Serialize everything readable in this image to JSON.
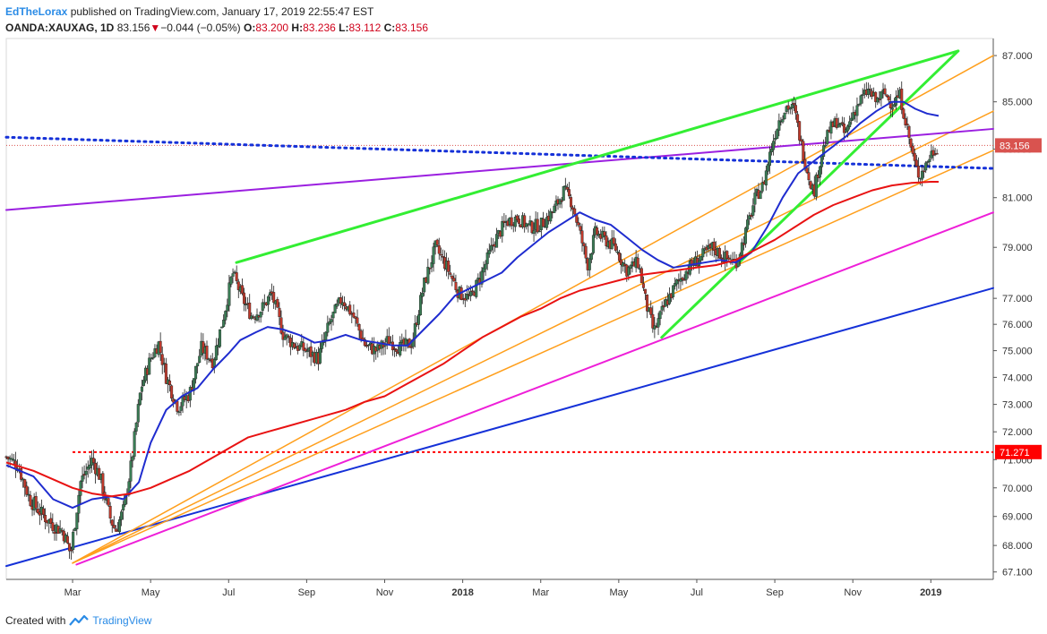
{
  "header": {
    "author": "EdTheLorax",
    "published": "published on TradingView.com, January 17, 2019 22:55:47 EST",
    "symbol": "OANDA:XAUXAG, 1D",
    "last": "83.156",
    "change_arrow": "▼",
    "change": "−0.044 (−0.05%)",
    "o_label": "O:",
    "o": "83.200",
    "h_label": "H:",
    "h": "83.236",
    "l_label": "L:",
    "l": "83.112",
    "c_label": "C:",
    "c": "83.156"
  },
  "footer": {
    "created_with": "Created with",
    "brand": "TradingView",
    "logo_icon": "tradingview-logo-icon"
  },
  "chart_data": {
    "type": "candlestick",
    "y_ticks": [
      "87.000",
      "85.000",
      "83.000",
      "81.000",
      "79.000",
      "77.000",
      "76.000",
      "75.000",
      "74.000",
      "73.000",
      "72.000",
      "71.000",
      "70.000",
      "69.000",
      "68.000",
      "67.100"
    ],
    "y_tick_values": [
      87,
      85,
      83,
      81,
      79,
      77,
      76,
      75,
      74,
      73,
      72,
      71,
      70,
      69,
      68,
      67.1
    ],
    "x_ticks": [
      {
        "label": "Mar",
        "t": 2.0
      },
      {
        "label": "May",
        "t": 4.0
      },
      {
        "label": "Jul",
        "t": 6.0
      },
      {
        "label": "Sep",
        "t": 8.0
      },
      {
        "label": "Nov",
        "t": 10.0
      },
      {
        "label": "2018",
        "t": 12.0,
        "bold": true
      },
      {
        "label": "Mar",
        "t": 14.0
      },
      {
        "label": "May",
        "t": 16.0
      },
      {
        "label": "Jul",
        "t": 18.0
      },
      {
        "label": "Sep",
        "t": 20.0
      },
      {
        "label": "Nov",
        "t": 22.0
      },
      {
        "label": "2019",
        "t": 24.0,
        "bold": true
      }
    ],
    "x_range": [
      0.3,
      25.6
    ],
    "current_price": {
      "value": 83.156,
      "label": "83.156",
      "color": "#d9534f"
    },
    "horizontal_level": {
      "value": 71.271,
      "label": "71.271",
      "color": "#ff0000"
    },
    "candle_colors": {
      "up": "#3a7d55",
      "down": "#c0392b"
    },
    "price_path": [
      [
        0.3,
        71.1
      ],
      [
        0.6,
        70.8
      ],
      [
        0.9,
        69.6
      ],
      [
        1.2,
        69.1
      ],
      [
        1.5,
        68.7
      ],
      [
        1.75,
        68.5
      ],
      [
        1.95,
        67.7
      ],
      [
        2.2,
        70.2
      ],
      [
        2.5,
        71.0
      ],
      [
        2.7,
        70.4
      ],
      [
        2.95,
        69.0
      ],
      [
        3.1,
        68.5
      ],
      [
        3.3,
        69.2
      ],
      [
        3.5,
        70.8
      ],
      [
        3.75,
        73.6
      ],
      [
        4.0,
        74.7
      ],
      [
        4.2,
        75.3
      ],
      [
        4.4,
        74.0
      ],
      [
        4.7,
        72.9
      ],
      [
        5.0,
        73.4
      ],
      [
        5.3,
        75.1
      ],
      [
        5.6,
        74.6
      ],
      [
        5.9,
        76.5
      ],
      [
        6.1,
        78.0
      ],
      [
        6.35,
        77.0
      ],
      [
        6.6,
        76.3
      ],
      [
        6.85,
        76.6
      ],
      [
        7.1,
        77.2
      ],
      [
        7.4,
        75.6
      ],
      [
        7.7,
        75.2
      ],
      [
        8.0,
        75.0
      ],
      [
        8.3,
        74.7
      ],
      [
        8.6,
        76.1
      ],
      [
        8.9,
        77.0
      ],
      [
        9.2,
        76.3
      ],
      [
        9.5,
        75.2
      ],
      [
        9.8,
        75.0
      ],
      [
        10.1,
        75.4
      ],
      [
        10.4,
        75.1
      ],
      [
        10.7,
        75.3
      ],
      [
        11.0,
        77.5
      ],
      [
        11.3,
        79.0
      ],
      [
        11.6,
        78.2
      ],
      [
        11.9,
        77.2
      ],
      [
        12.2,
        77.0
      ],
      [
        12.5,
        78.0
      ],
      [
        12.8,
        79.2
      ],
      [
        13.1,
        80.0
      ],
      [
        13.4,
        80.2
      ],
      [
        13.7,
        79.8
      ],
      [
        14.0,
        79.9
      ],
      [
        14.3,
        80.4
      ],
      [
        14.6,
        81.3
      ],
      [
        14.8,
        80.8
      ],
      [
        15.0,
        79.6
      ],
      [
        15.2,
        78.3
      ],
      [
        15.4,
        79.6
      ],
      [
        15.65,
        79.3
      ],
      [
        15.9,
        79.0
      ],
      [
        16.2,
        78.1
      ],
      [
        16.5,
        78.4
      ],
      [
        16.7,
        76.8
      ],
      [
        16.9,
        75.7
      ],
      [
        17.2,
        76.8
      ],
      [
        17.5,
        77.6
      ],
      [
        17.8,
        78.2
      ],
      [
        18.1,
        78.6
      ],
      [
        18.4,
        79.0
      ],
      [
        18.7,
        78.6
      ],
      [
        19.0,
        78.4
      ],
      [
        19.2,
        79.3
      ],
      [
        19.5,
        81.0
      ],
      [
        19.7,
        81.5
      ],
      [
        19.9,
        83.0
      ],
      [
        20.1,
        84.2
      ],
      [
        20.3,
        84.8
      ],
      [
        20.5,
        84.7
      ],
      [
        20.7,
        83.0
      ],
      [
        20.85,
        82.0
      ],
      [
        21.0,
        81.2
      ],
      [
        21.2,
        82.8
      ],
      [
        21.4,
        83.8
      ],
      [
        21.6,
        84.2
      ],
      [
        21.8,
        83.6
      ],
      [
        22.0,
        84.5
      ],
      [
        22.2,
        85.1
      ],
      [
        22.4,
        85.5
      ],
      [
        22.6,
        85.0
      ],
      [
        22.8,
        85.4
      ],
      [
        23.0,
        84.9
      ],
      [
        23.2,
        85.3
      ],
      [
        23.35,
        84.2
      ],
      [
        23.5,
        83.0
      ],
      [
        23.6,
        82.3
      ],
      [
        23.7,
        81.9
      ],
      [
        23.85,
        82.3
      ],
      [
        24.0,
        82.8
      ],
      [
        24.2,
        83.156
      ]
    ],
    "series": [
      {
        "name": "",
        "style": "ma",
        "color": "#1f2ccf",
        "points": [
          [
            0.3,
            70.8
          ],
          [
            1.0,
            70.4
          ],
          [
            1.5,
            69.6
          ],
          [
            2.0,
            69.3
          ],
          [
            2.5,
            69.6
          ],
          [
            3.0,
            69.7
          ],
          [
            3.3,
            69.6
          ],
          [
            3.7,
            70.2
          ],
          [
            4.0,
            71.6
          ],
          [
            4.4,
            72.8
          ],
          [
            4.8,
            73.3
          ],
          [
            5.2,
            73.6
          ],
          [
            5.6,
            74.3
          ],
          [
            6.0,
            74.9
          ],
          [
            6.3,
            75.4
          ],
          [
            6.7,
            75.7
          ],
          [
            7.0,
            75.9
          ],
          [
            7.4,
            75.8
          ],
          [
            7.8,
            75.6
          ],
          [
            8.2,
            75.3
          ],
          [
            8.6,
            75.4
          ],
          [
            9.0,
            75.6
          ],
          [
            9.4,
            75.4
          ],
          [
            9.8,
            75.3
          ],
          [
            10.2,
            75.2
          ],
          [
            10.6,
            75.2
          ],
          [
            11.0,
            75.8
          ],
          [
            11.4,
            76.4
          ],
          [
            11.8,
            77.1
          ],
          [
            12.2,
            77.4
          ],
          [
            12.6,
            77.7
          ],
          [
            13.0,
            78.0
          ],
          [
            13.4,
            78.6
          ],
          [
            13.8,
            79.1
          ],
          [
            14.2,
            79.6
          ],
          [
            14.6,
            80.0
          ],
          [
            15.0,
            80.4
          ],
          [
            15.4,
            80.1
          ],
          [
            15.8,
            79.9
          ],
          [
            16.2,
            79.4
          ],
          [
            16.6,
            78.9
          ],
          [
            17.0,
            78.5
          ],
          [
            17.4,
            78.2
          ],
          [
            17.8,
            78.3
          ],
          [
            18.2,
            78.4
          ],
          [
            18.6,
            78.5
          ],
          [
            19.0,
            78.4
          ],
          [
            19.4,
            78.8
          ],
          [
            19.8,
            79.8
          ],
          [
            20.2,
            81.0
          ],
          [
            20.6,
            82.0
          ],
          [
            21.0,
            82.5
          ],
          [
            21.4,
            83.0
          ],
          [
            21.8,
            83.5
          ],
          [
            22.2,
            84.1
          ],
          [
            22.6,
            84.6
          ],
          [
            23.0,
            85.0
          ],
          [
            23.3,
            85.0
          ],
          [
            23.6,
            84.7
          ],
          [
            23.9,
            84.5
          ],
          [
            24.2,
            84.4
          ]
        ]
      },
      {
        "name": "",
        "style": "ma",
        "color": "#e81212",
        "points": [
          [
            0.3,
            70.9
          ],
          [
            1.0,
            70.6
          ],
          [
            1.5,
            70.3
          ],
          [
            2.0,
            70.0
          ],
          [
            2.5,
            69.8
          ],
          [
            3.0,
            69.7
          ],
          [
            3.5,
            69.8
          ],
          [
            4.0,
            70.0
          ],
          [
            4.5,
            70.3
          ],
          [
            5.0,
            70.6
          ],
          [
            5.5,
            71.0
          ],
          [
            6.0,
            71.4
          ],
          [
            6.5,
            71.8
          ],
          [
            7.0,
            72.0
          ],
          [
            7.5,
            72.2
          ],
          [
            8.0,
            72.4
          ],
          [
            8.5,
            72.6
          ],
          [
            9.0,
            72.8
          ],
          [
            9.5,
            73.1
          ],
          [
            10.0,
            73.3
          ],
          [
            10.5,
            73.7
          ],
          [
            11.0,
            74.1
          ],
          [
            11.5,
            74.5
          ],
          [
            12.0,
            75.0
          ],
          [
            12.5,
            75.5
          ],
          [
            13.0,
            75.9
          ],
          [
            13.5,
            76.3
          ],
          [
            14.0,
            76.6
          ],
          [
            14.5,
            77.0
          ],
          [
            15.0,
            77.3
          ],
          [
            15.5,
            77.5
          ],
          [
            16.0,
            77.7
          ],
          [
            16.5,
            77.9
          ],
          [
            17.0,
            78.0
          ],
          [
            17.5,
            78.1
          ],
          [
            18.0,
            78.2
          ],
          [
            18.5,
            78.3
          ],
          [
            19.0,
            78.5
          ],
          [
            19.5,
            78.9
          ],
          [
            20.0,
            79.3
          ],
          [
            20.5,
            79.8
          ],
          [
            21.0,
            80.3
          ],
          [
            21.5,
            80.7
          ],
          [
            22.0,
            81.0
          ],
          [
            22.5,
            81.3
          ],
          [
            23.0,
            81.5
          ],
          [
            23.5,
            81.6
          ],
          [
            24.0,
            81.65
          ],
          [
            24.2,
            81.65
          ]
        ]
      }
    ],
    "trendlines": [
      {
        "from": [
          0.3,
          67.3
        ],
        "to": [
          25.6,
          77.4
        ],
        "color": "#1531d8",
        "width": 2
      },
      {
        "from": [
          2.1,
          67.35
        ],
        "to": [
          25.6,
          80.4
        ],
        "color": "#ee1fd8",
        "width": 2
      },
      {
        "from": [
          2.0,
          67.4
        ],
        "to": [
          25.6,
          87.0
        ],
        "color": "#ff9f1c",
        "width": 1.5
      },
      {
        "from": [
          2.0,
          67.4
        ],
        "to": [
          25.6,
          84.6
        ],
        "color": "#ff9f1c",
        "width": 1.5
      },
      {
        "from": [
          2.0,
          67.4
        ],
        "to": [
          25.6,
          82.95
        ],
        "color": "#ff9f1c",
        "width": 1.5
      },
      {
        "from": [
          0.3,
          80.5
        ],
        "to": [
          25.6,
          83.85
        ],
        "color": "#9b1fe0",
        "width": 2
      },
      {
        "from": [
          0.3,
          83.5
        ],
        "to": [
          25.6,
          82.2
        ],
        "color": "#1531d8",
        "width": 3,
        "dotted": true
      },
      {
        "from": [
          6.2,
          78.4
        ],
        "to": [
          24.7,
          87.2
        ],
        "color": "#33ee33",
        "width": 3
      },
      {
        "from": [
          17.1,
          75.5
        ],
        "to": [
          24.7,
          87.2
        ],
        "color": "#33ee33",
        "width": 3
      }
    ]
  }
}
